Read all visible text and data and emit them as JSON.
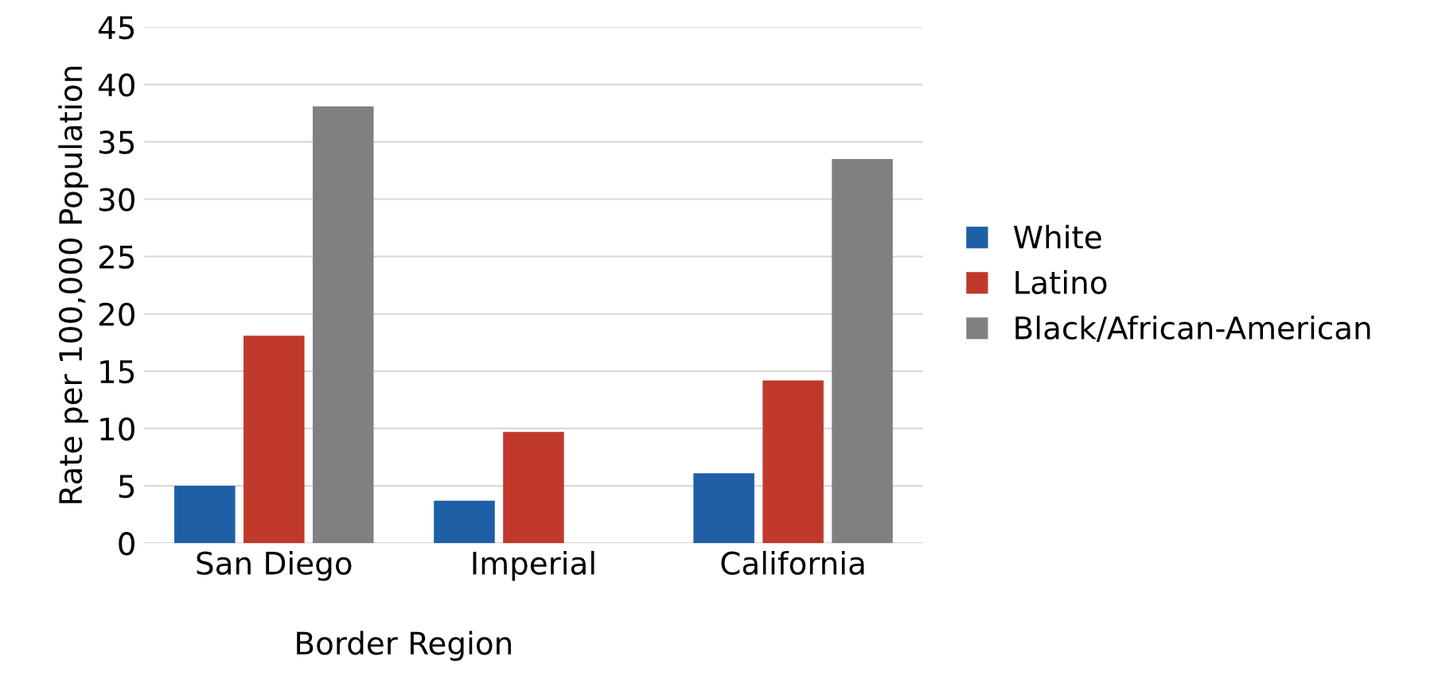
{
  "chart_data": {
    "type": "bar",
    "ylabel": "Rate per 100,000 Population",
    "categories": [
      "San Diego",
      "Imperial",
      "California"
    ],
    "series": [
      {
        "name": "White",
        "color": "#1f5fa6",
        "values": [
          5.0,
          3.7,
          6.1
        ]
      },
      {
        "name": "Latino",
        "color": "#c0392b",
        "values": [
          18.1,
          9.7,
          14.2
        ]
      },
      {
        "name": "Black/African-American",
        "color": "#808080",
        "values": [
          38.1,
          null,
          33.5
        ]
      }
    ],
    "ylim": [
      0,
      45
    ],
    "yticks": [
      0,
      5,
      10,
      15,
      20,
      25,
      30,
      35,
      40,
      45
    ],
    "grid": "y",
    "legend": "right",
    "annotations": [
      "Border Region"
    ]
  }
}
